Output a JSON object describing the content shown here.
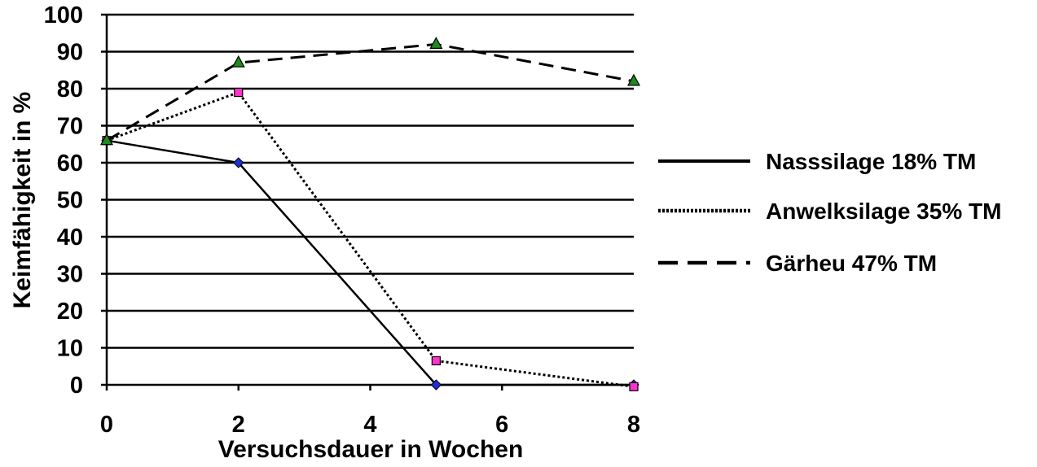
{
  "chart_data": {
    "type": "line",
    "xlabel": "Versuchsdauer in Wochen",
    "ylabel": "Keimfähigkeit in %",
    "xlim": [
      0,
      8
    ],
    "ylim": [
      0,
      100
    ],
    "xticks": [
      0,
      2,
      4,
      6,
      8
    ],
    "yticks": [
      0,
      10,
      20,
      30,
      40,
      50,
      60,
      70,
      80,
      90,
      100
    ],
    "grid": "horizontal",
    "legend_position": "right",
    "series": [
      {
        "name": "Nasssilage 18% TM",
        "line_style": "solid",
        "marker": "diamond",
        "marker_color": "#1f2fd6",
        "x": [
          0,
          2,
          5,
          8
        ],
        "y": [
          66,
          60,
          0,
          0
        ]
      },
      {
        "name": "Anwelksilage 35% TM",
        "line_style": "dotted",
        "marker": "square",
        "marker_color": "#ff33cc",
        "x": [
          0,
          2,
          5,
          8
        ],
        "y": [
          66,
          79,
          6.5,
          -0.5
        ]
      },
      {
        "name": "Gärheu 47% TM",
        "line_style": "dashed",
        "marker": "triangle",
        "marker_color": "#1f8a1f",
        "x": [
          0,
          2,
          5,
          8
        ],
        "y": [
          66,
          87,
          92,
          82
        ]
      }
    ]
  }
}
